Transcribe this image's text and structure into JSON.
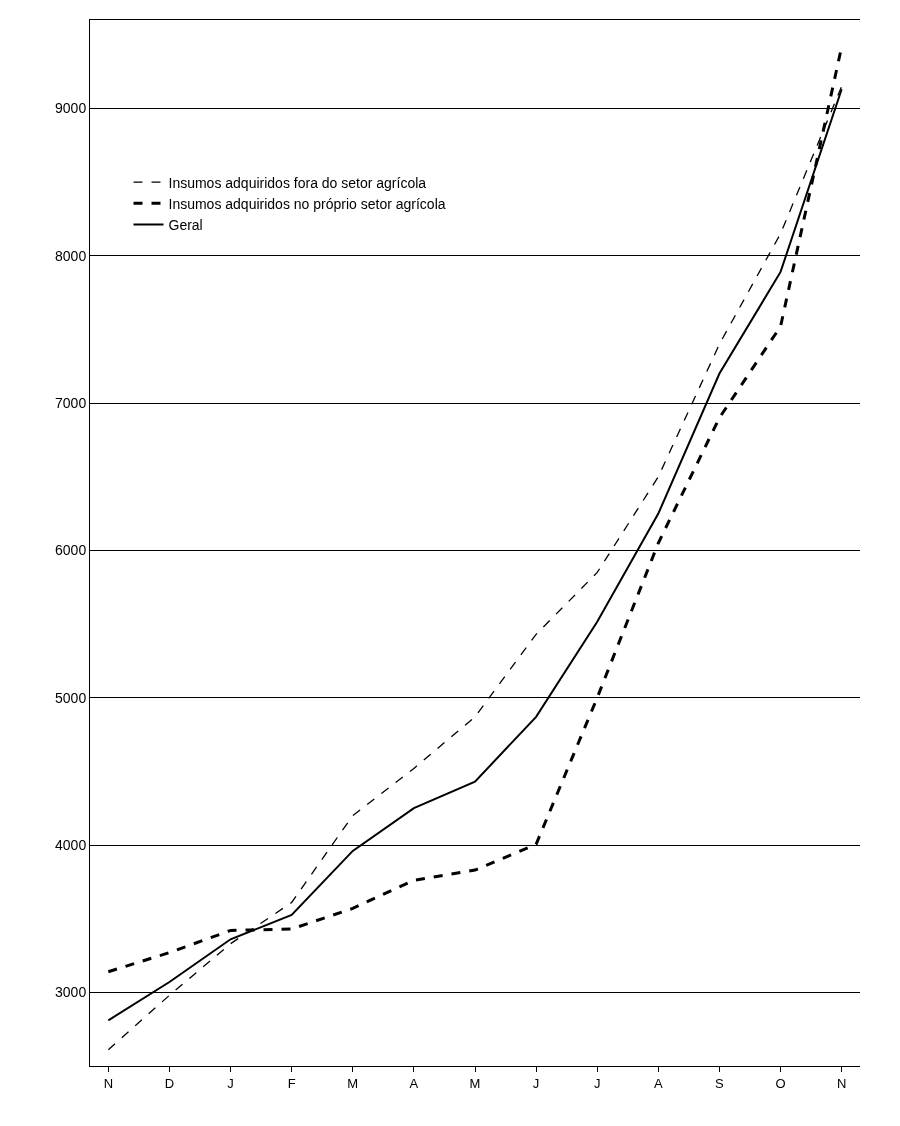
{
  "chart_data": {
    "type": "line",
    "categories": [
      "N",
      "D",
      "J",
      "F",
      "M",
      "A",
      "M",
      "J",
      "J",
      "A",
      "S",
      "O",
      "N"
    ],
    "series": [
      {
        "name": "Insumos adquiridos fora do setor agrícola",
        "color": "#000000",
        "line_style": "dashed",
        "values": [
          2610,
          2980,
          3330,
          3610,
          4200,
          4520,
          4870,
          5430,
          5850,
          6500,
          7400,
          8150,
          9150
        ]
      },
      {
        "name": "Insumos adquiridos no próprio setor agrícola",
        "color": "#000000",
        "line_style": "dashed",
        "values": [
          3140,
          3270,
          3420,
          3430,
          3570,
          3760,
          3830,
          4005,
          5000,
          6050,
          6900,
          7520,
          9420
        ]
      },
      {
        "name": "Geral",
        "color": "#000000",
        "line_style": "solid",
        "values": [
          2810,
          3070,
          3360,
          3525,
          3960,
          4250,
          4430,
          4870,
          5515,
          6250,
          7200,
          7890,
          9130
        ]
      }
    ],
    "ylim": [
      2500,
      9600
    ],
    "yticks": [
      3000,
      4000,
      5000,
      6000,
      7000,
      8000,
      9000
    ],
    "grid": "y",
    "legend": "top left",
    "marker": "none"
  }
}
